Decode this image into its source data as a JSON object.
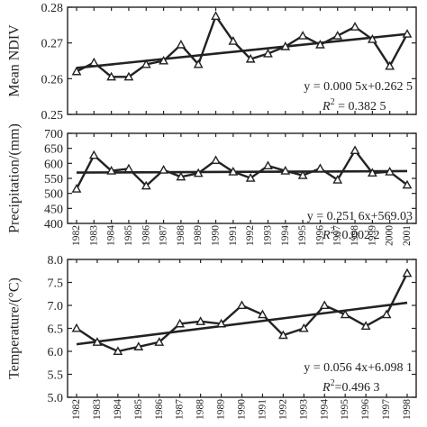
{
  "chart_data": [
    {
      "type": "line",
      "ylabel": "Mean NDIV",
      "ylim": [
        0.25,
        0.28
      ],
      "yticks": [
        "0.25",
        "0.26",
        "0.27",
        "0.28"
      ],
      "x": [
        1982,
        1983,
        1984,
        1985,
        1986,
        1987,
        1988,
        1989,
        1990,
        1991,
        1992,
        1993,
        1994,
        1995,
        1996,
        1997,
        1998,
        1999,
        2000,
        2001
      ],
      "values": [
        0.262,
        0.2645,
        0.2605,
        0.2605,
        0.264,
        0.265,
        0.2695,
        0.264,
        0.2775,
        0.2705,
        0.2655,
        0.267,
        0.269,
        0.272,
        0.2695,
        0.272,
        0.2745,
        0.271,
        0.2635,
        0.2725
      ],
      "trend": {
        "slope": 0.0005,
        "intercept": 0.2625
      },
      "equation": "y = 0.000 5x+0.262 5",
      "r2_label": "R",
      "r2_exp": "2",
      "r2_value": " = 0.382 5"
    },
    {
      "type": "line",
      "ylabel": "Precipitation/(mm)",
      "ylim": [
        400,
        700
      ],
      "yticks": [
        "400",
        "450",
        "500",
        "550",
        "600",
        "650",
        "700"
      ],
      "xtick_labels": [
        "1982",
        "1983",
        "1984",
        "1985",
        "1986",
        "1987",
        "1988",
        "1989",
        "1990",
        "1991",
        "1992",
        "1993",
        "1994",
        "1995",
        "1996",
        "1997",
        "1998",
        "1999",
        "2000",
        "2001"
      ],
      "x": [
        1982,
        1983,
        1984,
        1985,
        1986,
        1987,
        1988,
        1989,
        1990,
        1991,
        1992,
        1993,
        1994,
        1995,
        1996,
        1997,
        1998,
        1999,
        2000,
        2001
      ],
      "values": [
        515,
        627,
        575,
        582,
        525,
        578,
        555,
        567,
        610,
        572,
        551,
        592,
        575,
        560,
        583,
        545,
        643,
        568,
        572,
        528
      ],
      "trend": {
        "slope": 0.2516,
        "intercept": 569.03
      },
      "equation": "y = 0.251 6x+569.03",
      "r2_label": "R",
      "r2_exp": "2",
      "r2_value": "=0.002 2"
    },
    {
      "type": "line",
      "ylabel": "Temperature/(°C)",
      "ylim": [
        5.0,
        8.0
      ],
      "yticks": [
        "5.0",
        "5.5",
        "6.0",
        "6.5",
        "7.0",
        "7.5",
        "8.0"
      ],
      "xtick_labels": [
        "1982",
        "1983",
        "1984",
        "1985",
        "1986",
        "1987",
        "1988",
        "1989",
        "1990",
        "1991",
        "1992",
        "1993",
        "1994",
        "1995",
        "1996",
        "1997",
        "1998"
      ],
      "x": [
        1982,
        1983,
        1984,
        1985,
        1986,
        1987,
        1988,
        1989,
        1990,
        1991,
        1992,
        1993,
        1994,
        1995,
        1996,
        1997,
        1998
      ],
      "values": [
        6.5,
        6.2,
        6.0,
        6.1,
        6.2,
        6.6,
        6.65,
        6.6,
        7.0,
        6.8,
        6.35,
        6.5,
        7.0,
        6.8,
        6.55,
        6.8,
        7.7
      ],
      "trend": {
        "slope": 0.0564,
        "intercept": 6.0981
      },
      "equation": "y = 0.056 4x+6.098 1",
      "r2_label": "R",
      "r2_exp": "2",
      "r2_value": "=0.496 3"
    }
  ]
}
